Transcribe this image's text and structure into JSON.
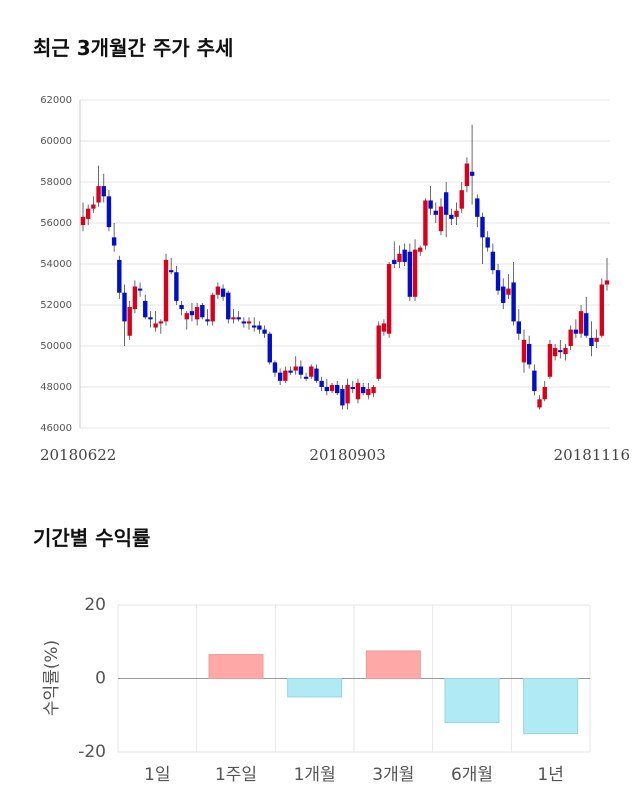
{
  "chart_data": [
    {
      "type": "candlestick",
      "title": "최근 3개월간 주가 추세",
      "categories": [
        "20180622",
        null,
        null,
        null,
        null,
        null,
        null,
        null,
        null,
        null,
        null,
        null,
        null,
        null,
        null,
        null,
        null,
        null,
        null,
        null,
        null,
        null,
        null,
        null,
        null,
        null,
        null,
        null,
        null,
        null,
        null,
        null,
        null,
        null,
        null,
        null,
        null,
        null,
        null,
        null,
        null,
        null,
        null,
        null,
        null,
        null,
        null,
        null,
        null,
        null,
        null,
        "20180903",
        null,
        null,
        null,
        null,
        null,
        null,
        null,
        null,
        null,
        null,
        null,
        null,
        null,
        null,
        null,
        null,
        null,
        null,
        null,
        null,
        null,
        null,
        null,
        null,
        null,
        null,
        null,
        null,
        null,
        null,
        null,
        null,
        null,
        null,
        null,
        null,
        null,
        null,
        null,
        null,
        null,
        null,
        null,
        null,
        null,
        null,
        null,
        "20181116",
        null,
        null
      ],
      "open": [
        55900,
        56200,
        56700,
        57000,
        57800,
        57300,
        55300,
        54200,
        52600,
        50500,
        51800,
        52800,
        52200,
        51400,
        50900,
        51100,
        51200,
        53700,
        53600,
        52000,
        51300,
        51700,
        51300,
        52000,
        51300,
        51200,
        52500,
        52800,
        52600,
        51300,
        51400,
        51200,
        51100,
        51000,
        51000,
        50800,
        50600,
        49200,
        48700,
        48300,
        48800,
        48800,
        49000,
        48500,
        48500,
        48900,
        48300,
        48000,
        47800,
        48100,
        47900,
        47200,
        48000,
        47400,
        48000,
        47600,
        47700,
        48400,
        50700,
        50600,
        54200,
        54100,
        54700,
        54600,
        52400,
        54600,
        54900,
        57100,
        56600,
        55600,
        57500,
        56400,
        56300,
        56700,
        57800,
        58500,
        57200,
        56300,
        55300,
        54600,
        53700,
        52900,
        52500,
        53100,
        51200,
        49200,
        50100,
        48800,
        47000,
        47400,
        48500,
        49500,
        49800,
        49600,
        50000,
        50800,
        50600,
        51600,
        50400,
        50200,
        50500,
        53000
      ],
      "high": [
        57000,
        56900,
        57300,
        58800,
        58400,
        57600,
        56000,
        54400,
        53000,
        52200,
        53200,
        53100,
        52500,
        51700,
        51700,
        51300,
        54500,
        54300,
        53900,
        52200,
        51700,
        52100,
        52100,
        52100,
        51800,
        52600,
        53100,
        53000,
        52700,
        51800,
        51700,
        51400,
        51400,
        51400,
        51200,
        51000,
        50700,
        49300,
        48900,
        49000,
        49000,
        49500,
        49300,
        48700,
        49100,
        49100,
        48500,
        48400,
        48200,
        48300,
        48100,
        48400,
        48300,
        48400,
        48200,
        48200,
        48100,
        51200,
        51300,
        54100,
        55100,
        54900,
        55000,
        55000,
        55200,
        54900,
        57200,
        57800,
        57000,
        57200,
        58000,
        56700,
        57000,
        58000,
        59200,
        60800,
        57400,
        56500,
        55600,
        55000,
        54000,
        53300,
        53500,
        54100,
        51800,
        50800,
        50500,
        49100,
        47600,
        48300,
        50300,
        50100,
        50300,
        50100,
        51000,
        51300,
        52000,
        52400,
        51200,
        50800,
        53300,
        54300
      ],
      "low": [
        55600,
        55900,
        56500,
        56800,
        57000,
        55600,
        54600,
        52300,
        50000,
        50300,
        51600,
        52400,
        51300,
        50900,
        50700,
        50600,
        51000,
        53500,
        52000,
        51500,
        50800,
        51200,
        51000,
        51300,
        51000,
        51000,
        52300,
        52200,
        51100,
        51100,
        51200,
        50900,
        50800,
        50700,
        50600,
        50400,
        49100,
        48500,
        48100,
        48200,
        48600,
        48600,
        48400,
        48300,
        48400,
        48200,
        47800,
        47600,
        47700,
        47600,
        46900,
        46900,
        47700,
        47200,
        47600,
        47400,
        47500,
        48300,
        50500,
        50400,
        53800,
        53800,
        53900,
        52200,
        52200,
        54400,
        54700,
        56400,
        56000,
        55400,
        55300,
        55900,
        55900,
        56500,
        57500,
        56900,
        55800,
        54000,
        54600,
        53500,
        52500,
        51800,
        52300,
        51000,
        50300,
        48700,
        48900,
        47600,
        46900,
        47300,
        48400,
        49300,
        49400,
        49300,
        49800,
        50400,
        50400,
        50400,
        49500,
        49900,
        50400,
        52700
      ],
      "close": [
        56300,
        56700,
        56900,
        57800,
        57300,
        55800,
        54900,
        52600,
        51200,
        51900,
        52900,
        52700,
        51400,
        51300,
        51100,
        51200,
        54200,
        53600,
        52200,
        51800,
        51600,
        51500,
        51900,
        51400,
        51200,
        52500,
        52900,
        52400,
        51300,
        51400,
        51300,
        51100,
        51200,
        50900,
        50800,
        50600,
        49200,
        48700,
        48300,
        48800,
        48700,
        49000,
        48600,
        48400,
        49000,
        48300,
        48000,
        47800,
        48100,
        47700,
        47100,
        48100,
        47900,
        48200,
        47700,
        47900,
        48000,
        51000,
        51100,
        54000,
        54000,
        54500,
        54100,
        52400,
        54700,
        54800,
        57100,
        56700,
        56400,
        56800,
        56400,
        56200,
        56600,
        57600,
        58900,
        58300,
        56300,
        55300,
        54800,
        53700,
        52700,
        52100,
        52800,
        51200,
        50600,
        50300,
        49100,
        47800,
        47400,
        48000,
        50100,
        49900,
        49700,
        49900,
        50800,
        50600,
        51700,
        50500,
        50000,
        50400,
        53000,
        53200
      ],
      "up_color": "#d8001a",
      "down_color": "#0010c8",
      "ylim": [
        46000,
        62000
      ],
      "yticks": [
        46000,
        48000,
        50000,
        52000,
        54000,
        56000,
        58000,
        60000,
        62000
      ],
      "grid": true
    },
    {
      "type": "bar",
      "title": "기간별 수익률",
      "y_label": "수익률(%)",
      "categories": [
        "1일",
        "1주일",
        "1개월",
        "3개월",
        "6개월",
        "1년"
      ],
      "values": [
        0,
        6.5,
        -5,
        7.5,
        -12,
        -15
      ],
      "positive_color": "#ffa8a8",
      "negative_color": "#b0ebf5",
      "ylim": [
        -20,
        20
      ],
      "yticks": [
        20,
        0,
        -20
      ],
      "grid": true
    }
  ]
}
